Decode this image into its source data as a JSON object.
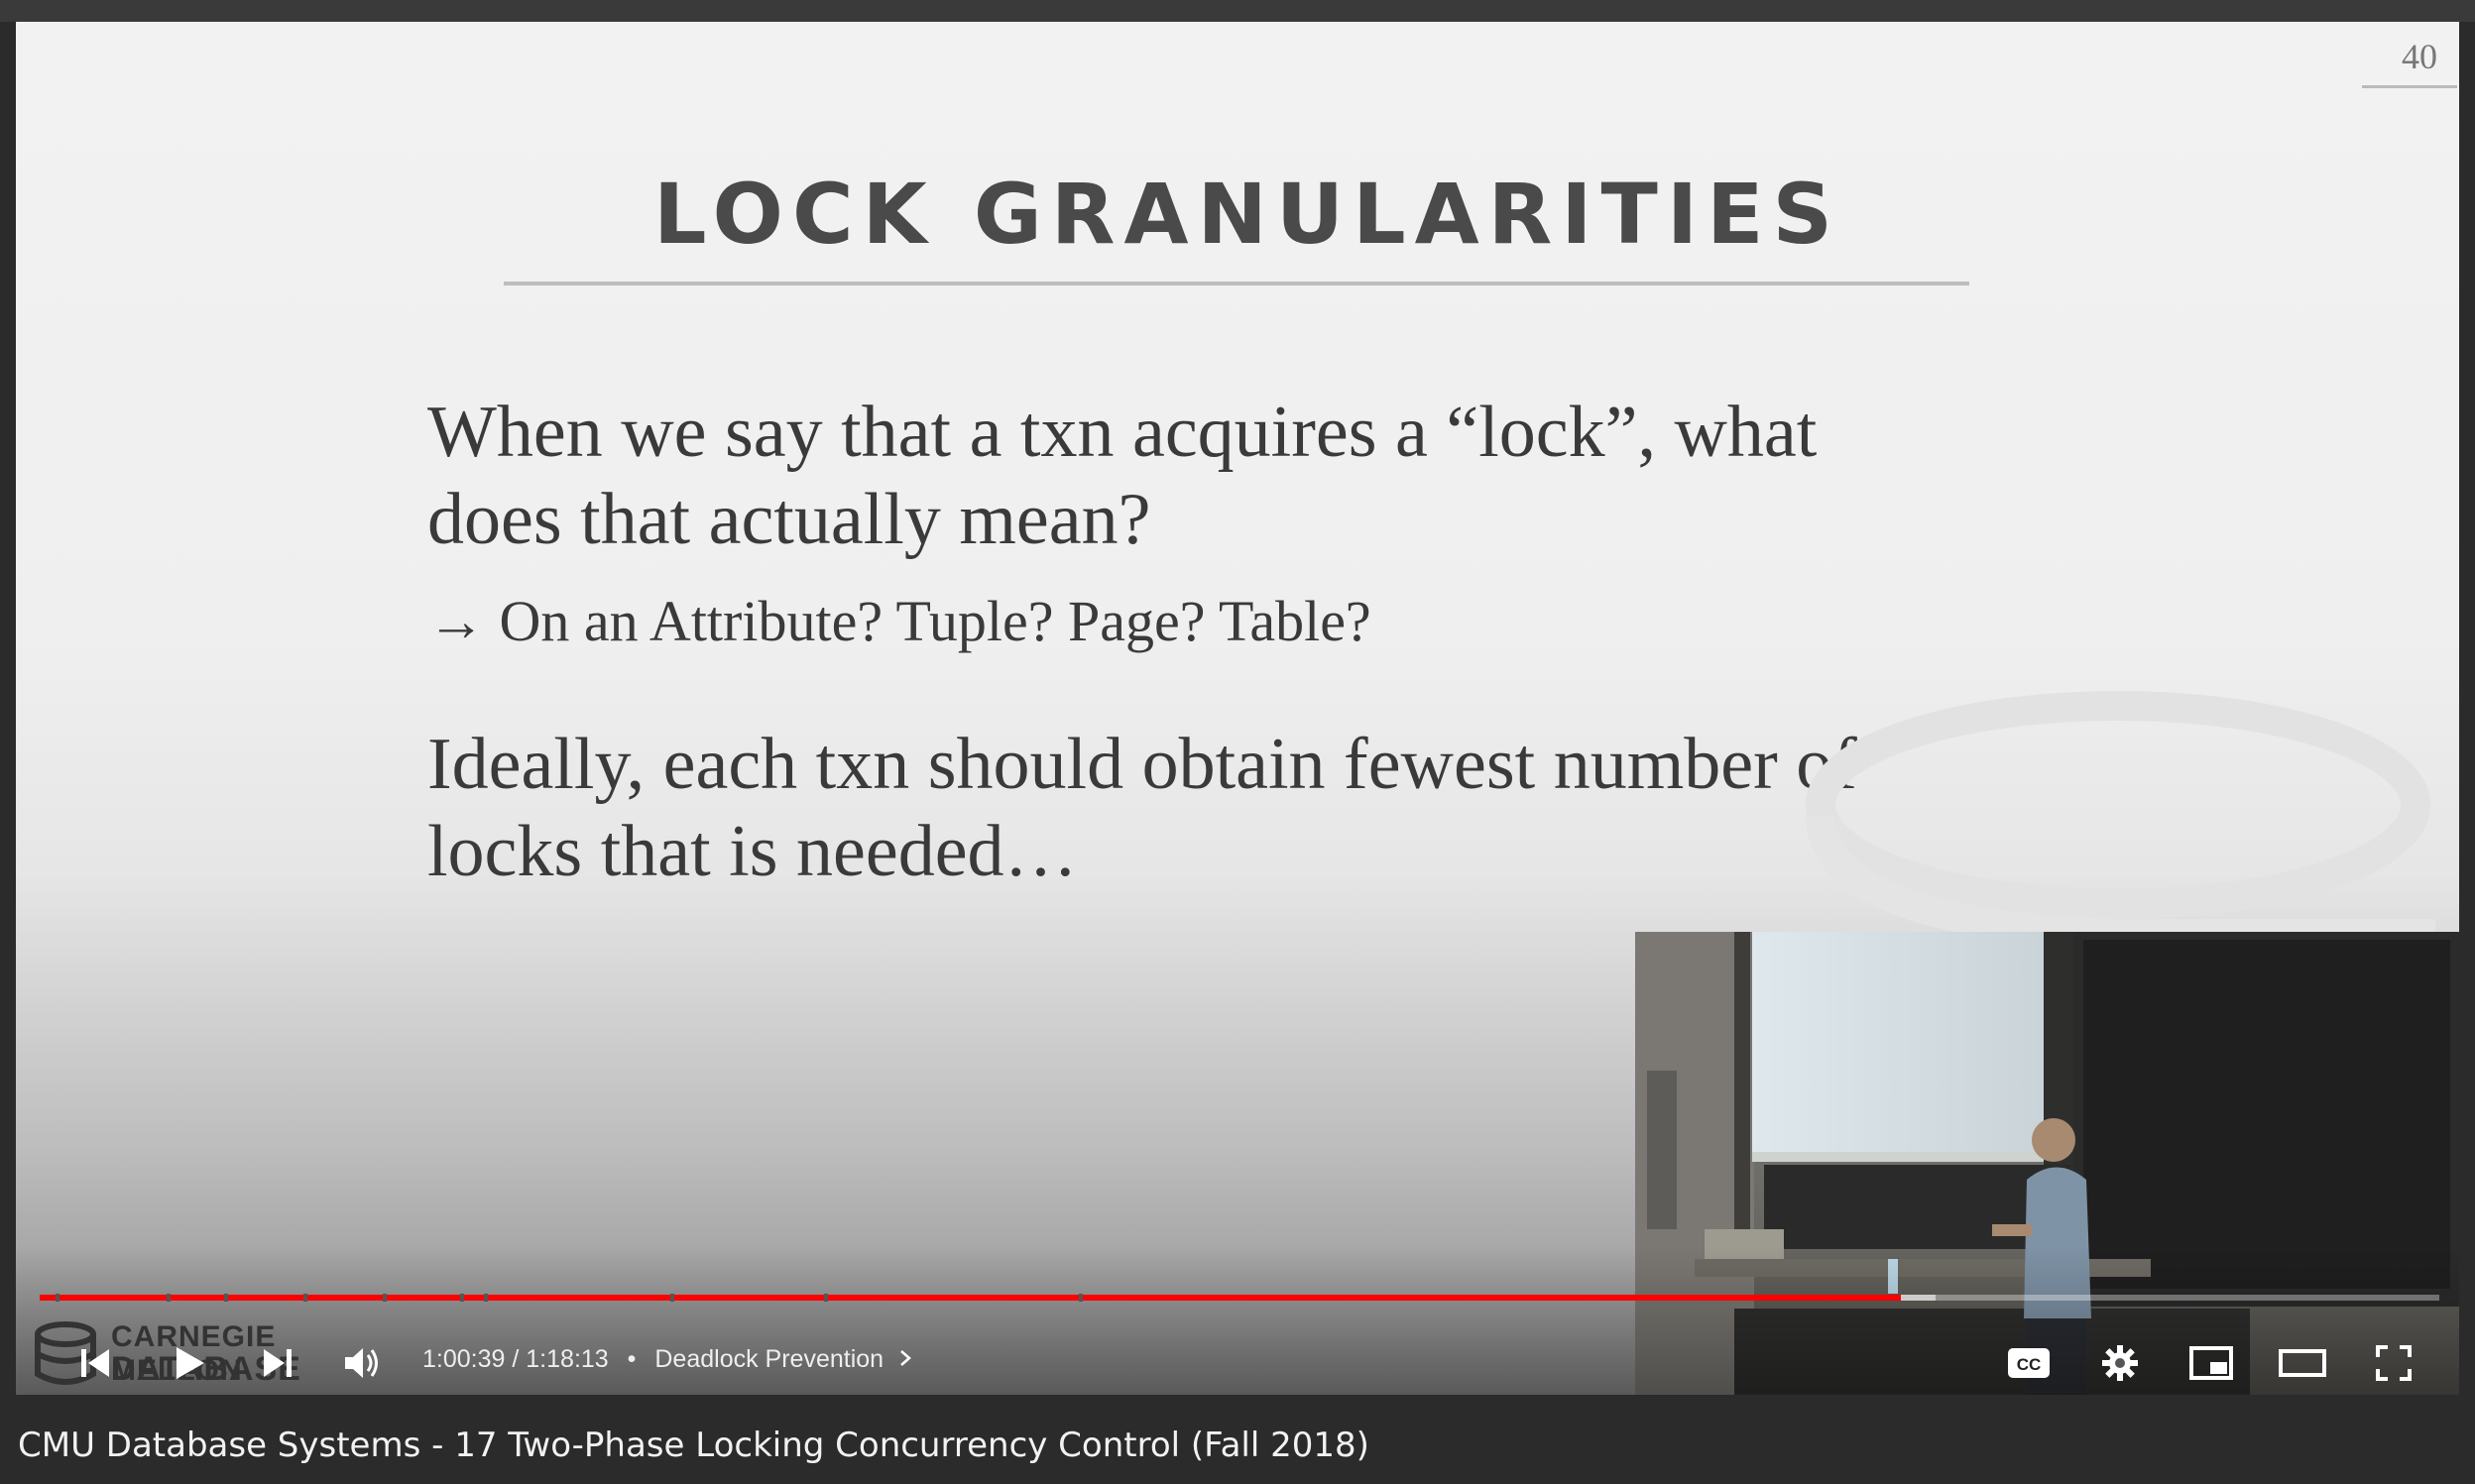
{
  "slide": {
    "number": "40",
    "title": "LOCK GRANULARITIES",
    "bullet_1_line_1": "When we say that a txn acquires a “lock”, what",
    "bullet_1_line_2": "does that actually mean?",
    "sub_bullet": "→ On an Attribute? Tuple? Page? Table?",
    "bullet_2_line_1": "Ideally, each txn should obtain fewest number of",
    "bullet_2_line_2": "locks that is needed…"
  },
  "logo": {
    "line_1": "CARNEGIE MELLON",
    "line_2": "DATABASE GROUP"
  },
  "player": {
    "current_time": "1:00:39",
    "separator": "/",
    "duration": "1:18:13",
    "chapter_dot": "•",
    "chapter_title": "Deadlock Prevention",
    "progress_played_fraction": 0.7755,
    "progress_buffered_fraction": 0.79,
    "chapter_marks_fraction": [
      0.0065,
      0.053,
      0.077,
      0.11,
      0.143,
      0.175,
      0.185,
      0.263,
      0.327,
      0.433
    ],
    "cc_label": "CC",
    "accent_color": "#ff0000"
  },
  "video": {
    "title": "CMU Database Systems - 17 Two-Phase Locking Concurrency Control (Fall 2018)"
  }
}
